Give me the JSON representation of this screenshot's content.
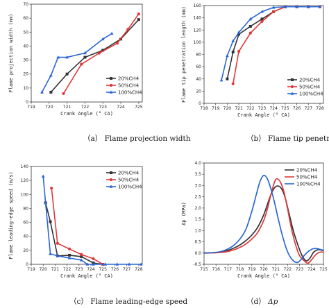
{
  "colors": {
    "20%CH4": "#333333",
    "50%CH4": "#e0383a",
    "100%CH4": "#2a66d6"
  },
  "chart_data": [
    {
      "type": "line",
      "caption": "（a） Flame projection width",
      "xlabel": "Crank Angle (° CA)",
      "ylabel": "Flame projection width (mm)",
      "xlim": [
        719,
        725.2
      ],
      "ylim": [
        0,
        70
      ],
      "xticks": [
        719,
        720,
        721,
        722,
        723,
        724,
        725
      ],
      "yticks": [
        0,
        10,
        20,
        30,
        40,
        50,
        60,
        70
      ],
      "legend_position": "bottom-right",
      "series": [
        {
          "name": "20%CH4",
          "marker": "square",
          "x": [
            720.1,
            721.0,
            722.0,
            723.0,
            724.0,
            725.0
          ],
          "y": [
            7,
            20,
            32,
            37,
            45,
            59
          ]
        },
        {
          "name": "50%CH4",
          "marker": "circle",
          "x": [
            720.8,
            721.8,
            722.8,
            723.8,
            724.4,
            725.0
          ],
          "y": [
            6,
            27,
            35,
            42,
            52,
            63
          ]
        },
        {
          "name": "100%CH4",
          "marker": "triangle",
          "x": [
            719.6,
            720.1,
            720.5,
            721.0,
            722.0,
            723.0,
            723.5
          ],
          "y": [
            7,
            19,
            32,
            32,
            35,
            45,
            49
          ]
        }
      ]
    },
    {
      "type": "line",
      "caption": "（b） Flame tip penetration length",
      "xlabel": "Crank Angle (° CA)",
      "ylabel": "Flame tip penetration length (mm)",
      "xlim": [
        718,
        728.3
      ],
      "ylim": [
        0,
        160
      ],
      "xticks": [
        718,
        719,
        720,
        721,
        722,
        723,
        724,
        725,
        726,
        727,
        728
      ],
      "yticks": [
        0,
        20,
        40,
        60,
        80,
        100,
        120,
        140,
        160
      ],
      "legend_position": "bottom-right",
      "series": [
        {
          "name": "20%CH4",
          "marker": "square",
          "x": [
            720.0,
            720.5,
            721.0,
            722.0,
            723.0,
            724.0,
            725.0,
            726.0,
            727.0,
            728.0
          ],
          "y": [
            40,
            84,
            113,
            126,
            138,
            150,
            158,
            158,
            158,
            158
          ]
        },
        {
          "name": "50%CH4",
          "marker": "circle",
          "x": [
            720.5,
            721.0,
            722.0,
            723.0,
            724.0,
            725.0,
            726.0,
            727.0,
            728.0
          ],
          "y": [
            32,
            85,
            115,
            134,
            150,
            158,
            158,
            158,
            158
          ]
        },
        {
          "name": "100%CH4",
          "marker": "triangle",
          "x": [
            719.5,
            720.0,
            720.5,
            721.0,
            722.0,
            723.0,
            724.0,
            725.0,
            726.0,
            727.0,
            728.0
          ],
          "y": [
            38,
            78,
            102,
            116,
            138,
            150,
            157,
            158,
            158,
            158,
            158
          ]
        }
      ]
    },
    {
      "type": "line",
      "caption": "（c） Flame leading-edge speed",
      "xlabel": "Crank Angle (° CA)",
      "ylabel": "Flame leading-edge speed (m/s)",
      "xlim": [
        719,
        728.3
      ],
      "ylim": [
        0,
        140
      ],
      "xticks": [
        719,
        720,
        721,
        722,
        723,
        724,
        725,
        726,
        727,
        728
      ],
      "yticks": [
        0,
        20,
        40,
        60,
        80,
        100,
        120,
        140
      ],
      "legend_position": "top-right",
      "series": [
        {
          "name": "20%CH4",
          "marker": "square",
          "x": [
            720.2,
            720.6,
            721.2,
            722.2,
            723.2,
            724.2,
            725.0
          ],
          "y": [
            88,
            61,
            12,
            13,
            11,
            2,
            0
          ]
        },
        {
          "name": "50%CH4",
          "marker": "circle",
          "x": [
            720.7,
            721.2,
            722.2,
            723.2,
            724.2,
            725.0
          ],
          "y": [
            109,
            30,
            22,
            14,
            8,
            0
          ]
        },
        {
          "name": "100%CH4",
          "marker": "triangle",
          "x": [
            720.0,
            720.2,
            720.6,
            721.2,
            722.2,
            723.2,
            723.7,
            724.2,
            725.2,
            726.2,
            727.2,
            728.2
          ],
          "y": [
            126,
            88,
            15,
            12,
            9,
            6,
            0,
            0,
            0,
            0,
            0,
            0
          ]
        }
      ]
    },
    {
      "type": "line",
      "caption_prefix": "（d） ",
      "caption_symbol": "Δp",
      "xlabel": "Crank Angle (° CA)",
      "ylabel": "Δp (MPa)",
      "xlim": [
        715,
        725
      ],
      "ylim": [
        -0.5,
        4.0
      ],
      "xticks": [
        715,
        716,
        717,
        718,
        719,
        720,
        721,
        722,
        723,
        724,
        725
      ],
      "yticks": [
        -0.5,
        0.0,
        0.5,
        1.0,
        1.5,
        2.0,
        2.5,
        3.0,
        3.5,
        4.0
      ],
      "ytick_labels": [
        "-0.5",
        "0.0",
        "0.5",
        "1.0",
        "1.5",
        "2.0",
        "2.5",
        "3.0",
        "3.5",
        "4.0"
      ],
      "legend_position": "top-right",
      "series": [
        {
          "name": "20%CH4",
          "x": [
            715,
            716,
            716.5,
            717,
            717.5,
            718,
            718.5,
            719,
            719.5,
            720,
            720.3,
            720.6,
            720.9,
            721.2,
            721.5,
            721.8,
            722.1,
            722.5,
            723,
            723.3,
            723.6,
            723.9,
            724.2,
            724.6,
            725
          ],
          "y": [
            0.0,
            0.02,
            0.05,
            0.12,
            0.22,
            0.36,
            0.55,
            0.8,
            1.15,
            1.7,
            2.15,
            2.6,
            2.9,
            2.98,
            2.85,
            2.45,
            1.8,
            0.95,
            0.15,
            -0.2,
            -0.35,
            -0.2,
            0.05,
            0.15,
            0.1
          ]
        },
        {
          "name": "50%CH4",
          "x": [
            715,
            716,
            716.5,
            717,
            717.5,
            718,
            718.5,
            719,
            719.5,
            720,
            720.3,
            720.6,
            720.9,
            721.1,
            721.4,
            721.7,
            722,
            722.4,
            722.9,
            723.3,
            723.7,
            724.0,
            724.4,
            724.8,
            725
          ],
          "y": [
            0.0,
            0.01,
            0.03,
            0.07,
            0.14,
            0.25,
            0.4,
            0.62,
            0.92,
            1.45,
            1.95,
            2.6,
            3.15,
            3.3,
            3.15,
            2.7,
            1.95,
            0.9,
            0.0,
            -0.3,
            -0.45,
            -0.3,
            -0.05,
            0.05,
            0.02
          ]
        },
        {
          "name": "100%CH4",
          "x": [
            715,
            716,
            716.5,
            717,
            717.5,
            718,
            718.5,
            719,
            719.4,
            719.7,
            720,
            720.3,
            720.6,
            720.9,
            721.2,
            721.6,
            722,
            722.4,
            722.8,
            723.1,
            723.4,
            723.8,
            724.2,
            724.6,
            725
          ],
          "y": [
            0.0,
            0.03,
            0.08,
            0.18,
            0.35,
            0.62,
            1.05,
            1.85,
            2.65,
            3.2,
            3.45,
            3.3,
            2.85,
            2.25,
            1.55,
            0.7,
            0.05,
            -0.3,
            -0.42,
            -0.3,
            -0.1,
            0.1,
            0.2,
            0.18,
            0.12
          ]
        }
      ]
    }
  ]
}
